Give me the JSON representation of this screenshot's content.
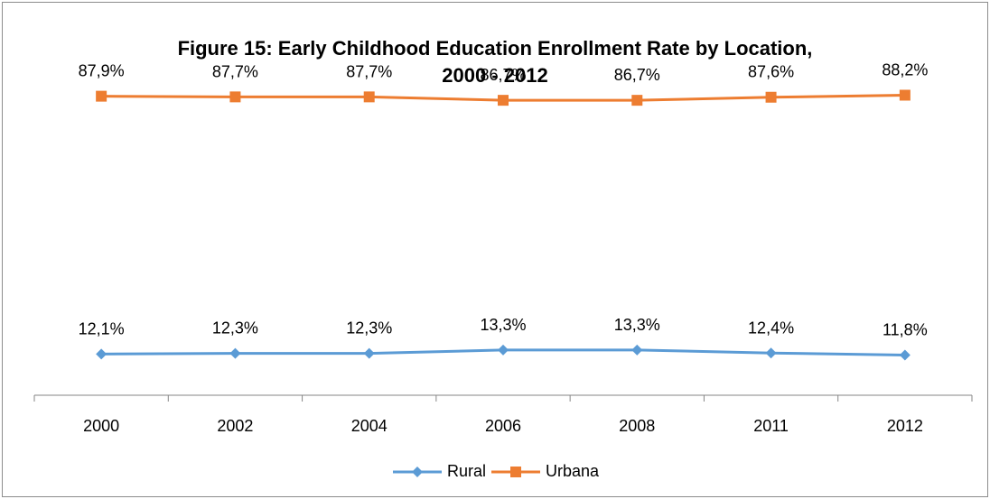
{
  "chart_data": {
    "type": "line",
    "title_lines": [
      "Figure 15: Early Childhood Education Enrollment Rate by Location,",
      "2000 - 2012"
    ],
    "categories": [
      "2000",
      "2002",
      "2004",
      "2006",
      "2008",
      "2011",
      "2012"
    ],
    "series": [
      {
        "name": "Rural",
        "values": [
          12.1,
          12.3,
          12.3,
          13.3,
          13.3,
          12.4,
          11.8
        ],
        "labels": [
          "12,1%",
          "12,3%",
          "12,3%",
          "13,3%",
          "13,3%",
          "12,4%",
          "11,8%"
        ],
        "color": "#5b9bd5",
        "marker": "diamond"
      },
      {
        "name": "Urbana",
        "values": [
          87.9,
          87.7,
          87.7,
          86.7,
          86.7,
          87.6,
          88.2
        ],
        "labels": [
          "87,9%",
          "87,7%",
          "87,7%",
          "86,7%",
          "86,7%",
          "87,6%",
          "88,2%"
        ],
        "color": "#ed7d31",
        "marker": "square"
      }
    ],
    "ylim": [
      0,
      100
    ],
    "y_axis_visible": false,
    "grid": false,
    "legend_position": "bottom",
    "xlabel": "",
    "ylabel": ""
  }
}
